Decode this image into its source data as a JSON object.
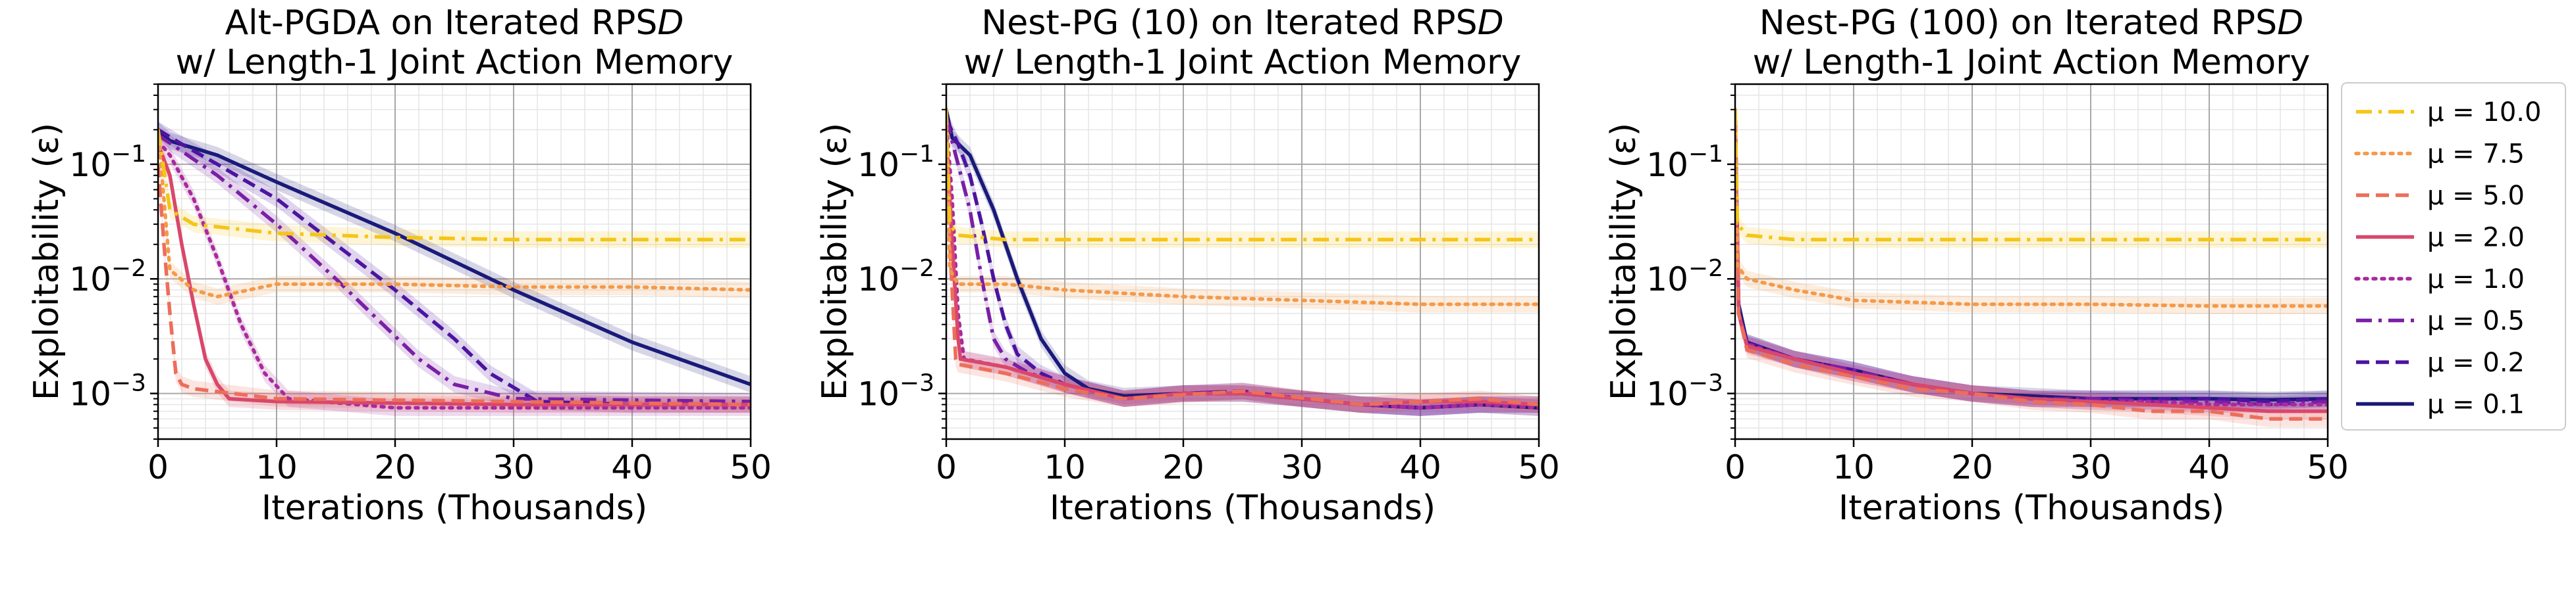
{
  "figure": {
    "legend": {
      "position": "right of third panel",
      "entries": [
        {
          "label": "μ = 10.0",
          "color": "#f5c518",
          "dash": "dashdot"
        },
        {
          "label": "μ = 7.5",
          "color": "#f49a4a",
          "dash": "dotted"
        },
        {
          "label": "μ = 5.0",
          "color": "#ec6e5b",
          "dash": "dashed"
        },
        {
          "label": "μ = 2.0",
          "color": "#d9476b",
          "dash": "solid"
        },
        {
          "label": "μ = 1.0",
          "color": "#a82a9c",
          "dash": "dotted"
        },
        {
          "label": "μ = 0.5",
          "color": "#7a1fa6",
          "dash": "dashdot"
        },
        {
          "label": "μ = 0.2",
          "color": "#4c14a0",
          "dash": "dashed"
        },
        {
          "label": "μ = 0.1",
          "color": "#1a1a7a",
          "dash": "solid"
        }
      ]
    }
  },
  "chart_data": [
    {
      "type": "line",
      "title_line1": "Alt-PGDA on Iterated RPS",
      "title_italic": "D",
      "title_line2": "w/ Length-1 Joint Action Memory",
      "xlabel": "Iterations (Thousands)",
      "ylabel": "Exploitability (ε)",
      "xlim": [
        0,
        50
      ],
      "ylim": [
        0.0004,
        0.5
      ],
      "yscale": "log",
      "grid": true,
      "xticks": [
        "0",
        "10",
        "20",
        "30",
        "40",
        "50"
      ],
      "yticks": [
        "10^-3",
        "10^-2",
        "10^-1"
      ],
      "series": [
        {
          "name": "μ = 10.0",
          "x": [
            0,
            1,
            3,
            10,
            20,
            30,
            40,
            50
          ],
          "y": [
            0.2,
            0.04,
            0.03,
            0.025,
            0.023,
            0.022,
            0.022,
            0.022
          ]
        },
        {
          "name": "μ = 7.5",
          "x": [
            0,
            1,
            3,
            5,
            10,
            20,
            30,
            40,
            50
          ],
          "y": [
            0.2,
            0.012,
            0.008,
            0.007,
            0.009,
            0.009,
            0.0085,
            0.0085,
            0.008
          ]
        },
        {
          "name": "μ = 5.0",
          "x": [
            0,
            0.5,
            1,
            1.5,
            2,
            3,
            10,
            30,
            50
          ],
          "y": [
            0.1,
            0.02,
            0.005,
            0.0015,
            0.0012,
            0.0011,
            0.0009,
            0.00085,
            0.0008
          ]
        },
        {
          "name": "μ = 2.0",
          "x": [
            0,
            1,
            2,
            3,
            4,
            5,
            6,
            10,
            30,
            50
          ],
          "y": [
            0.15,
            0.08,
            0.02,
            0.006,
            0.002,
            0.0012,
            0.0009,
            0.00085,
            0.0008,
            0.0008
          ]
        },
        {
          "name": "μ = 1.0",
          "x": [
            0,
            1,
            3,
            5,
            7,
            9,
            11,
            20,
            50
          ],
          "y": [
            0.16,
            0.12,
            0.05,
            0.015,
            0.004,
            0.0015,
            0.0009,
            0.00075,
            0.00075
          ]
        },
        {
          "name": "μ = 0.5",
          "x": [
            0,
            2,
            5,
            10,
            15,
            18,
            22,
            25,
            30,
            50
          ],
          "y": [
            0.18,
            0.13,
            0.08,
            0.03,
            0.01,
            0.005,
            0.002,
            0.0012,
            0.0009,
            0.00085
          ]
        },
        {
          "name": "μ = 0.2",
          "x": [
            0,
            2,
            5,
            10,
            15,
            20,
            25,
            28,
            32,
            40,
            50
          ],
          "y": [
            0.2,
            0.15,
            0.1,
            0.05,
            0.02,
            0.008,
            0.003,
            0.0015,
            0.00085,
            0.0008,
            0.0008
          ]
        },
        {
          "name": "μ = 0.1",
          "x": [
            0,
            1,
            5,
            10,
            20,
            30,
            40,
            50
          ],
          "y": [
            0.2,
            0.16,
            0.12,
            0.07,
            0.025,
            0.008,
            0.0028,
            0.0012
          ]
        }
      ]
    },
    {
      "type": "line",
      "title_line1": "Nest-PG (10) on Iterated RPS",
      "title_italic": "D",
      "title_line2": "w/ Length-1 Joint Action Memory",
      "xlabel": "Iterations (Thousands)",
      "ylabel": "Exploitability (ε)",
      "xlim": [
        0,
        50
      ],
      "ylim": [
        0.0004,
        0.5
      ],
      "yscale": "log",
      "grid": true,
      "xticks": [
        "0",
        "10",
        "20",
        "30",
        "40",
        "50"
      ],
      "yticks": [
        "10^-3",
        "10^-2",
        "10^-1"
      ],
      "series": [
        {
          "name": "μ = 10.0",
          "x": [
            0,
            0.3,
            1,
            5,
            20,
            50
          ],
          "y": [
            0.3,
            0.03,
            0.024,
            0.022,
            0.022,
            0.022
          ]
        },
        {
          "name": "μ = 7.5",
          "x": [
            0,
            0.3,
            1,
            5,
            10,
            20,
            30,
            40,
            50
          ],
          "y": [
            0.3,
            0.012,
            0.009,
            0.009,
            0.008,
            0.007,
            0.0065,
            0.006,
            0.006
          ]
        },
        {
          "name": "μ = 5.0",
          "x": [
            0,
            0.3,
            0.8,
            1,
            5,
            10,
            15,
            25,
            35,
            45,
            50
          ],
          "y": [
            0.2,
            0.02,
            0.002,
            0.0018,
            0.0015,
            0.0011,
            0.0009,
            0.00105,
            0.0008,
            0.0009,
            0.0008
          ]
        },
        {
          "name": "μ = 2.0",
          "x": [
            0,
            0.5,
            1,
            1.2,
            5,
            10,
            15,
            20,
            25,
            30,
            35,
            40,
            45,
            50
          ],
          "y": [
            0.2,
            0.02,
            0.003,
            0.002,
            0.0017,
            0.0012,
            0.0009,
            0.001,
            0.001,
            0.0009,
            0.0008,
            0.00085,
            0.00085,
            0.0008
          ]
        },
        {
          "name": "μ = 1.0",
          "x": [
            0,
            0.5,
            1,
            1.5,
            5,
            10,
            15,
            20,
            25,
            30,
            35,
            40,
            45,
            50
          ],
          "y": [
            0.25,
            0.05,
            0.005,
            0.002,
            0.0017,
            0.0012,
            0.0009,
            0.001,
            0.001,
            0.0009,
            0.0008,
            0.00075,
            0.0008,
            0.00075
          ]
        },
        {
          "name": "μ = 0.5",
          "x": [
            0,
            1,
            2,
            3,
            4,
            5,
            7,
            10,
            15,
            20,
            25,
            30,
            35,
            40,
            45,
            50
          ],
          "y": [
            0.25,
            0.1,
            0.04,
            0.01,
            0.003,
            0.002,
            0.0015,
            0.0012,
            0.0009,
            0.001,
            0.00105,
            0.0009,
            0.0008,
            0.00075,
            0.0008,
            0.0008
          ]
        },
        {
          "name": "μ = 0.2",
          "x": [
            0,
            1,
            2,
            3,
            4,
            5,
            6,
            8,
            10,
            15,
            20,
            25,
            30,
            35,
            40,
            45,
            50
          ],
          "y": [
            0.25,
            0.15,
            0.08,
            0.03,
            0.01,
            0.004,
            0.0022,
            0.0015,
            0.0012,
            0.0009,
            0.001,
            0.00105,
            0.0009,
            0.0008,
            0.00075,
            0.0008,
            0.0008
          ]
        },
        {
          "name": "μ = 0.1",
          "x": [
            0,
            0.5,
            2,
            4,
            6,
            8,
            10,
            12,
            15,
            20,
            25,
            30,
            35,
            40,
            45,
            50
          ],
          "y": [
            0.3,
            0.17,
            0.12,
            0.04,
            0.01,
            0.003,
            0.0015,
            0.0011,
            0.00095,
            0.001,
            0.001,
            0.0009,
            0.0008,
            0.00075,
            0.0008,
            0.00075
          ]
        }
      ]
    },
    {
      "type": "line",
      "title_line1": "Nest-PG (100) on Iterated RPS",
      "title_italic": "D",
      "title_line2": "w/ Length-1 Joint Action Memory",
      "xlabel": "Iterations (Thousands)",
      "ylabel": "Exploitability (ε)",
      "xlim": [
        0,
        50
      ],
      "ylim": [
        0.0004,
        0.5
      ],
      "yscale": "log",
      "grid": true,
      "xticks": [
        "0",
        "10",
        "20",
        "30",
        "40",
        "50"
      ],
      "yticks": [
        "10^-3",
        "10^-2",
        "10^-1"
      ],
      "series": [
        {
          "name": "μ = 10.0",
          "x": [
            0,
            0.2,
            1,
            5,
            20,
            50
          ],
          "y": [
            0.3,
            0.03,
            0.024,
            0.022,
            0.022,
            0.022
          ]
        },
        {
          "name": "μ = 7.5",
          "x": [
            0,
            0.2,
            1,
            5,
            10,
            20,
            30,
            40,
            50
          ],
          "y": [
            0.3,
            0.013,
            0.01,
            0.008,
            0.0065,
            0.006,
            0.006,
            0.0058,
            0.0058
          ]
        },
        {
          "name": "μ = 5.0",
          "x": [
            0,
            0.3,
            1,
            5,
            10,
            15,
            20,
            25,
            30,
            35,
            40,
            45,
            50
          ],
          "y": [
            0.3,
            0.005,
            0.0024,
            0.0018,
            0.0014,
            0.0011,
            0.001,
            0.00085,
            0.0008,
            0.0007,
            0.0007,
            0.0006,
            0.0006
          ]
        },
        {
          "name": "μ = 2.0",
          "x": [
            0,
            0.3,
            1,
            5,
            10,
            15,
            20,
            25,
            30,
            35,
            40,
            45,
            50
          ],
          "y": [
            0.3,
            0.005,
            0.0026,
            0.002,
            0.0015,
            0.0012,
            0.001,
            0.0009,
            0.00085,
            0.0008,
            0.00075,
            0.0007,
            0.0007
          ]
        },
        {
          "name": "μ = 1.0",
          "x": [
            0,
            0.3,
            1,
            5,
            10,
            15,
            20,
            25,
            30,
            35,
            40,
            45,
            50
          ],
          "y": [
            0.3,
            0.005,
            0.0027,
            0.002,
            0.0015,
            0.0012,
            0.001,
            0.0009,
            0.00085,
            0.00085,
            0.0008,
            0.0008,
            0.0008
          ]
        },
        {
          "name": "μ = 0.5",
          "x": [
            0,
            0.3,
            1,
            5,
            10,
            15,
            20,
            25,
            30,
            35,
            40,
            45,
            50
          ],
          "y": [
            0.3,
            0.005,
            0.0027,
            0.002,
            0.0016,
            0.0012,
            0.001,
            0.0009,
            0.0009,
            0.00085,
            0.00085,
            0.0008,
            0.00085
          ]
        },
        {
          "name": "μ = 0.2",
          "x": [
            0,
            0.3,
            1,
            5,
            10,
            15,
            20,
            25,
            30,
            35,
            40,
            45,
            50
          ],
          "y": [
            0.3,
            0.005,
            0.0028,
            0.002,
            0.0016,
            0.0012,
            0.001,
            0.0009,
            0.0009,
            0.0009,
            0.0009,
            0.00085,
            0.0009
          ]
        },
        {
          "name": "μ = 0.1",
          "x": [
            0,
            0.3,
            1,
            5,
            10,
            15,
            20,
            25,
            30,
            35,
            40,
            45,
            50
          ],
          "y": [
            0.3,
            0.006,
            0.0028,
            0.002,
            0.0016,
            0.0012,
            0.001,
            0.00095,
            0.0009,
            0.0009,
            0.0009,
            0.00088,
            0.0009
          ]
        }
      ]
    }
  ]
}
